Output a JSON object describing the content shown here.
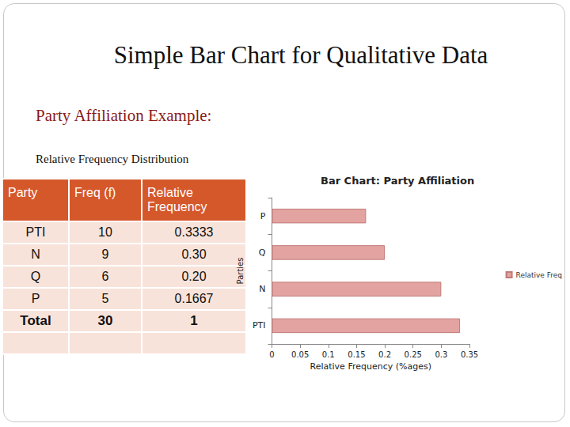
{
  "slide": {
    "title": "Simple Bar Chart for Qualitative Data",
    "subtitle": "Party Affiliation Example:",
    "table_title": "Relative Frequency Distribution",
    "table": {
      "header": [
        "Party",
        "Freq (f)",
        "Relative Frequency"
      ],
      "rows": [
        [
          "PTI",
          "10",
          "0.3333"
        ],
        [
          "N",
          "9",
          "0.30"
        ],
        [
          "Q",
          "6",
          "0.20"
        ],
        [
          "P",
          "5",
          "0.1667"
        ]
      ],
      "total": [
        "Total",
        "30",
        "1"
      ]
    }
  },
  "chart_data": {
    "type": "bar",
    "title": "Bar Chart: Party Affiliation",
    "orientation": "horizontal",
    "x_label": "Relative Frequency (%ages)",
    "y_label": "Parties",
    "categories": [
      "PTI",
      "N",
      "Q",
      "P"
    ],
    "series": [
      {
        "name": "Relative Freq",
        "color": "#e3a3a1",
        "values": [
          0.3333,
          0.3,
          0.2,
          0.1667
        ]
      }
    ],
    "xlim": [
      0,
      0.35
    ],
    "xticks": [
      0,
      0.05,
      0.1,
      0.15,
      0.2,
      0.25,
      0.3,
      0.35
    ],
    "grid": false,
    "legend": "right"
  }
}
